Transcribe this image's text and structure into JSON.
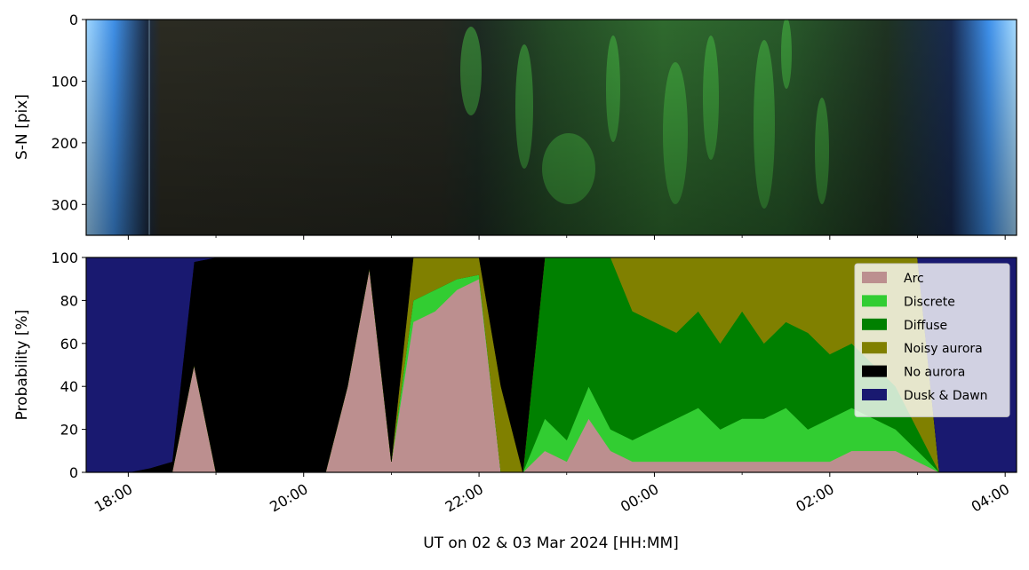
{
  "chart_data": [
    {
      "type": "image",
      "ylabel": "S-N [pix]",
      "ylim": [
        350,
        0
      ],
      "yticks": [
        0,
        100,
        200,
        300
      ]
    },
    {
      "type": "area",
      "ylabel": "Probability [%]",
      "xlabel": "UT on 02 & 03 Mar 2024 [HH:MM]",
      "xlim": [
        17.52,
        28.13
      ],
      "xticks": [
        {
          "value": 18,
          "label": "18:00"
        },
        {
          "value": 20,
          "label": "20:00"
        },
        {
          "value": 22,
          "label": "22:00"
        },
        {
          "value": 24,
          "label": "00:00"
        },
        {
          "value": 26,
          "label": "02:00"
        },
        {
          "value": 28,
          "label": "04:00"
        }
      ],
      "ylim": [
        0,
        100
      ],
      "yticks": [
        0,
        20,
        40,
        60,
        80,
        100
      ],
      "legend": "upper right",
      "x": [
        17.52,
        17.75,
        18.0,
        18.25,
        18.5,
        18.75,
        19.0,
        19.25,
        19.5,
        19.75,
        20.0,
        20.25,
        20.5,
        20.75,
        21.0,
        21.25,
        21.5,
        21.75,
        22.0,
        22.25,
        22.5,
        22.75,
        23.0,
        23.25,
        23.5,
        23.75,
        24.0,
        24.25,
        24.5,
        24.75,
        25.0,
        25.25,
        25.5,
        25.75,
        26.0,
        26.25,
        26.5,
        26.75,
        27.0,
        27.25,
        27.5,
        27.75,
        28.0,
        28.13
      ],
      "series": [
        {
          "name": "Arc",
          "color": "#bc8f8f",
          "values": [
            0,
            0,
            0,
            0,
            0,
            50,
            0,
            0,
            0,
            0,
            0,
            0,
            40,
            95,
            5,
            70,
            75,
            85,
            90,
            0,
            0,
            10,
            5,
            25,
            10,
            5,
            5,
            5,
            5,
            5,
            5,
            5,
            5,
            5,
            5,
            10,
            10,
            10,
            5,
            0,
            0,
            0,
            0,
            0
          ]
        },
        {
          "name": "Discrete",
          "color": "#32cd32",
          "values": [
            0,
            0,
            0,
            0,
            0,
            0,
            0,
            0,
            0,
            0,
            0,
            0,
            0,
            0,
            0,
            10,
            10,
            5,
            2,
            0,
            0,
            15,
            10,
            15,
            10,
            10,
            15,
            20,
            25,
            15,
            20,
            20,
            25,
            15,
            20,
            20,
            15,
            10,
            5,
            0,
            0,
            0,
            0,
            0
          ]
        },
        {
          "name": "Diffuse",
          "color": "#008000",
          "values": [
            0,
            0,
            0,
            0,
            0,
            0,
            0,
            0,
            0,
            0,
            0,
            0,
            0,
            0,
            0,
            0,
            0,
            0,
            0,
            0,
            0,
            75,
            85,
            60,
            80,
            60,
            50,
            40,
            45,
            40,
            50,
            35,
            40,
            45,
            30,
            30,
            25,
            20,
            10,
            0,
            0,
            0,
            0,
            0
          ]
        },
        {
          "name": "Noisy aurora",
          "color": "#808000",
          "values": [
            0,
            0,
            0,
            0,
            0,
            0,
            0,
            0,
            0,
            0,
            0,
            0,
            0,
            0,
            0,
            20,
            15,
            10,
            8,
            40,
            0,
            0,
            0,
            0,
            0,
            25,
            30,
            35,
            25,
            40,
            25,
            40,
            30,
            35,
            45,
            40,
            50,
            60,
            80,
            0,
            0,
            0,
            0,
            0
          ]
        },
        {
          "name": "No aurora",
          "color": "#000000",
          "values": [
            0,
            0,
            0,
            2,
            5,
            48,
            100,
            100,
            100,
            100,
            100,
            100,
            60,
            5,
            95,
            0,
            0,
            0,
            0,
            60,
            100,
            0,
            0,
            0,
            0,
            0,
            0,
            0,
            0,
            0,
            0,
            0,
            0,
            0,
            0,
            0,
            0,
            0,
            0,
            0,
            0,
            0,
            0,
            0
          ]
        },
        {
          "name": "Dusk & Dawn",
          "color": "#191970",
          "values": [
            100,
            100,
            100,
            98,
            95,
            2,
            0,
            0,
            0,
            0,
            0,
            0,
            0,
            0,
            0,
            0,
            0,
            0,
            0,
            0,
            0,
            0,
            0,
            0,
            0,
            0,
            0,
            0,
            0,
            0,
            0,
            0,
            0,
            0,
            0,
            0,
            0,
            0,
            0,
            100,
            100,
            100,
            100,
            100
          ]
        }
      ]
    }
  ]
}
